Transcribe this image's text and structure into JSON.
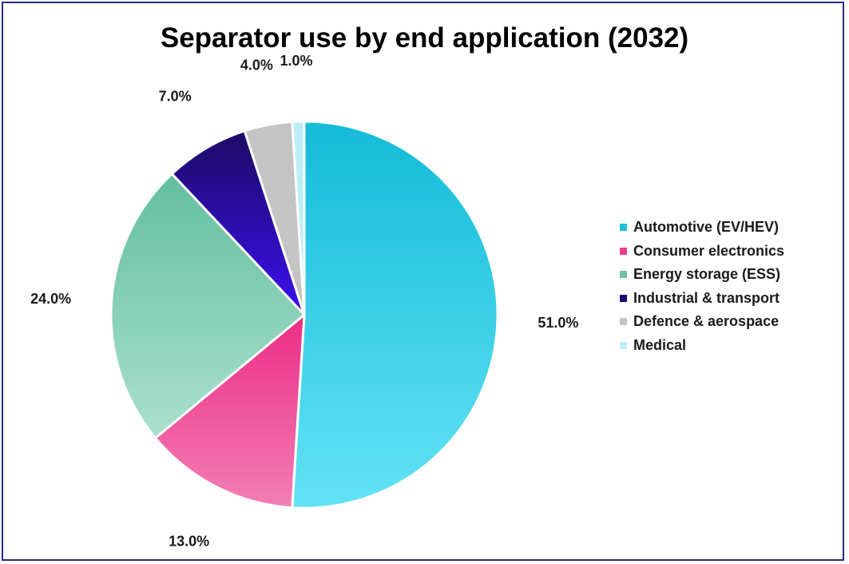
{
  "chart_data": {
    "type": "pie",
    "title": "Separator use by end application (2032)",
    "categories": [
      "Automotive (EV/HEV)",
      "Consumer electronics",
      "Energy storage (ESS)",
      "Industrial & transport",
      "Defence & aerospace",
      "Medical"
    ],
    "values": [
      51.0,
      13.0,
      24.0,
      7.0,
      4.0,
      1.0
    ],
    "value_labels": [
      "51.0%",
      "13.0%",
      "24.0%",
      "7.0%",
      "4.0%",
      "1.0%"
    ],
    "colors": [
      {
        "top": "#13bbd8",
        "bottom": "#63e3f5"
      },
      {
        "top": "#ec2b86",
        "bottom": "#f27fb4"
      },
      {
        "top": "#62bf9f",
        "bottom": "#abe0ce"
      },
      {
        "top": "#1d0b64",
        "bottom": "#3a10f0"
      },
      {
        "top": "#c4c4c4",
        "bottom": "#c4c4c4"
      },
      {
        "top": "#bdeef6",
        "bottom": "#bdeef6"
      }
    ],
    "legend_colors": [
      "#1cc2dd",
      "#ee3d8d",
      "#6cc3a4",
      "#1b0a74",
      "#c4c4c4",
      "#bdeef6"
    ],
    "legend_position": "right",
    "start_angle": "12 o'clock",
    "direction": "clockwise"
  }
}
